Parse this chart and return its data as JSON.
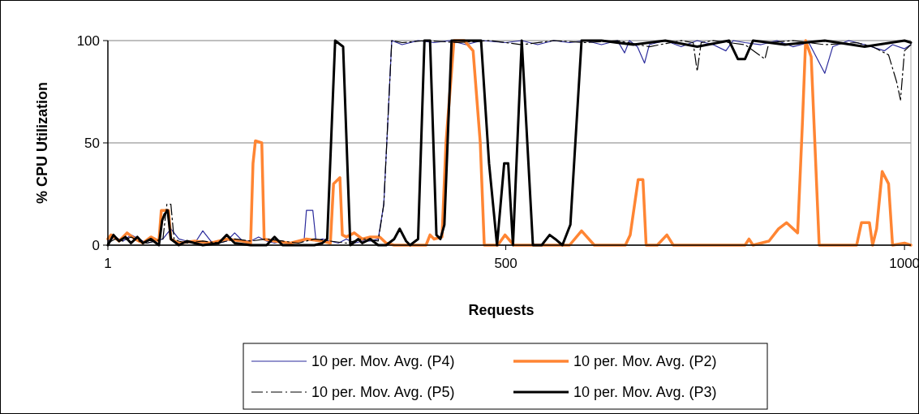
{
  "chart_data": {
    "type": "line",
    "xlabel": "Requests",
    "ylabel": "% CPU Utilization",
    "xlim": [
      1,
      1008
    ],
    "ylim": [
      0,
      100
    ],
    "xticks": [
      1,
      500,
      1000
    ],
    "yticks": [
      0,
      50,
      100
    ],
    "grid": "y",
    "legend": "bottom",
    "series": [
      {
        "name": "10 per. Mov. Avg. (P4)",
        "color": "#2b2b9c",
        "line_style": "solid",
        "x": [
          1,
          10,
          20,
          30,
          40,
          50,
          60,
          70,
          80,
          90,
          100,
          110,
          120,
          130,
          140,
          150,
          160,
          170,
          180,
          190,
          200,
          210,
          220,
          230,
          240,
          247,
          250,
          258,
          262,
          270,
          280,
          290,
          300,
          310,
          320,
          330,
          340,
          347,
          352,
          357,
          370,
          390,
          410,
          430,
          450,
          470,
          500,
          520,
          540,
          560,
          580,
          600,
          620,
          640,
          649,
          655,
          665,
          674,
          680,
          700,
          720,
          740,
          760,
          776,
          785,
          800,
          820,
          840,
          860,
          880,
          900,
          910,
          930,
          950,
          975,
          985,
          1000,
          1008
        ],
        "values": [
          2,
          4,
          2,
          5,
          3,
          1,
          2,
          3,
          8,
          3,
          2,
          1,
          7,
          2,
          1,
          2,
          6,
          2,
          2,
          4,
          2,
          1,
          2,
          1,
          2,
          2,
          17,
          17,
          2,
          3,
          2,
          1,
          3,
          1,
          2,
          2,
          3,
          20,
          60,
          100,
          98,
          100,
          99,
          100,
          98,
          100,
          99,
          100,
          98,
          100,
          99,
          100,
          98,
          100,
          94,
          100,
          97,
          89,
          98,
          100,
          97,
          100,
          98,
          95,
          100,
          99,
          98,
          100,
          97,
          99,
          84,
          97,
          100,
          98,
          95,
          98,
          96,
          98
        ]
      },
      {
        "name": "10 per. Mov. Avg. (P2)",
        "color": "#ff8533",
        "line_style": "solid",
        "x": [
          1,
          5,
          15,
          25,
          35,
          45,
          55,
          65,
          68,
          77,
          80,
          90,
          110,
          130,
          150,
          170,
          180,
          183,
          186,
          194,
          197,
          210,
          230,
          250,
          270,
          280,
          284,
          292,
          295,
          300,
          310,
          320,
          330,
          342,
          350,
          360,
          400,
          405,
          410,
          420,
          425,
          435,
          448,
          459,
          468,
          473,
          490,
          499,
          510,
          580,
          595,
          611,
          650,
          656,
          666,
          672,
          676,
          690,
          702,
          710,
          800,
          805,
          810,
          830,
          842,
          852,
          866,
          872,
          876,
          883,
          893,
          940,
          946,
          956,
          960,
          965,
          972,
          980,
          985,
          1000,
          1008
        ],
        "values": [
          3,
          5,
          2,
          6,
          3,
          1,
          4,
          2,
          17,
          17,
          3,
          1,
          2,
          1,
          3,
          2,
          1,
          40,
          51,
          50,
          3,
          2,
          1,
          3,
          2,
          1,
          30,
          33,
          5,
          4,
          6,
          3,
          4,
          4,
          1,
          0,
          0,
          5,
          3,
          4,
          50,
          100,
          100,
          95,
          50,
          0,
          0,
          5,
          0,
          0,
          7,
          0,
          0,
          5,
          32,
          32,
          0,
          0,
          5,
          0,
          0,
          3,
          0,
          2,
          8,
          11,
          6,
          60,
          100,
          92,
          0,
          0,
          11,
          11,
          0,
          8,
          36,
          30,
          0,
          1,
          0
        ]
      },
      {
        "name": "10 per. Mov. Avg. (P5)",
        "color": "#000000",
        "line_style": "dashed",
        "x": [
          1,
          10,
          20,
          30,
          40,
          50,
          60,
          70,
          75,
          80,
          84,
          90,
          100,
          120,
          140,
          160,
          180,
          200,
          220,
          240,
          260,
          280,
          300,
          320,
          340,
          347,
          352,
          357,
          370,
          400,
          440,
          480,
          520,
          560,
          600,
          640,
          680,
          720,
          735,
          740,
          745,
          760,
          800,
          825,
          830,
          860,
          900,
          940,
          960,
          980,
          990,
          995,
          1000,
          1008
        ],
        "values": [
          1,
          3,
          2,
          4,
          2,
          1,
          2,
          3,
          20,
          20,
          3,
          2,
          1,
          2,
          1,
          3,
          2,
          3,
          2,
          1,
          3,
          2,
          1,
          3,
          2,
          20,
          60,
          100,
          99,
          100,
          99,
          100,
          98,
          100,
          99,
          100,
          97,
          100,
          99,
          85,
          99,
          100,
          98,
          91,
          99,
          100,
          98,
          99,
          97,
          93,
          80,
          71,
          95,
          98
        ]
      },
      {
        "name": "10 per. Mov. Avg. (P3)",
        "color": "#000000",
        "line_style": "solid",
        "x": [
          1,
          8,
          15,
          23,
          30,
          38,
          45,
          55,
          65,
          69,
          72,
          76,
          80,
          90,
          100,
          120,
          140,
          150,
          160,
          180,
          200,
          210,
          220,
          240,
          260,
          270,
          276,
          286,
          296,
          305,
          315,
          320,
          330,
          340,
          350,
          360,
          367,
          375,
          380,
          390,
          398,
          405,
          413,
          418,
          423,
          432,
          450,
          469,
          479,
          489,
          498,
          503,
          509,
          520,
          527,
          534,
          545,
          555,
          562,
          571,
          581,
          595,
          620,
          660,
          700,
          740,
          780,
          791,
          800,
          810,
          850,
          900,
          950,
          1000,
          1008
        ],
        "values": [
          0,
          5,
          2,
          4,
          1,
          4,
          1,
          3,
          0,
          12,
          15,
          17,
          3,
          0,
          2,
          0,
          1,
          5,
          1,
          0,
          0,
          4,
          0,
          0,
          0,
          1,
          3,
          100,
          97,
          0,
          3,
          1,
          3,
          0,
          0,
          3,
          8,
          2,
          0,
          3,
          100,
          100,
          5,
          3,
          10,
          100,
          100,
          100,
          40,
          0,
          40,
          40,
          0,
          100,
          50,
          0,
          0,
          5,
          3,
          0,
          10,
          100,
          100,
          98,
          100,
          97,
          100,
          91,
          91,
          100,
          98,
          100,
          97,
          100,
          99
        ]
      }
    ]
  }
}
